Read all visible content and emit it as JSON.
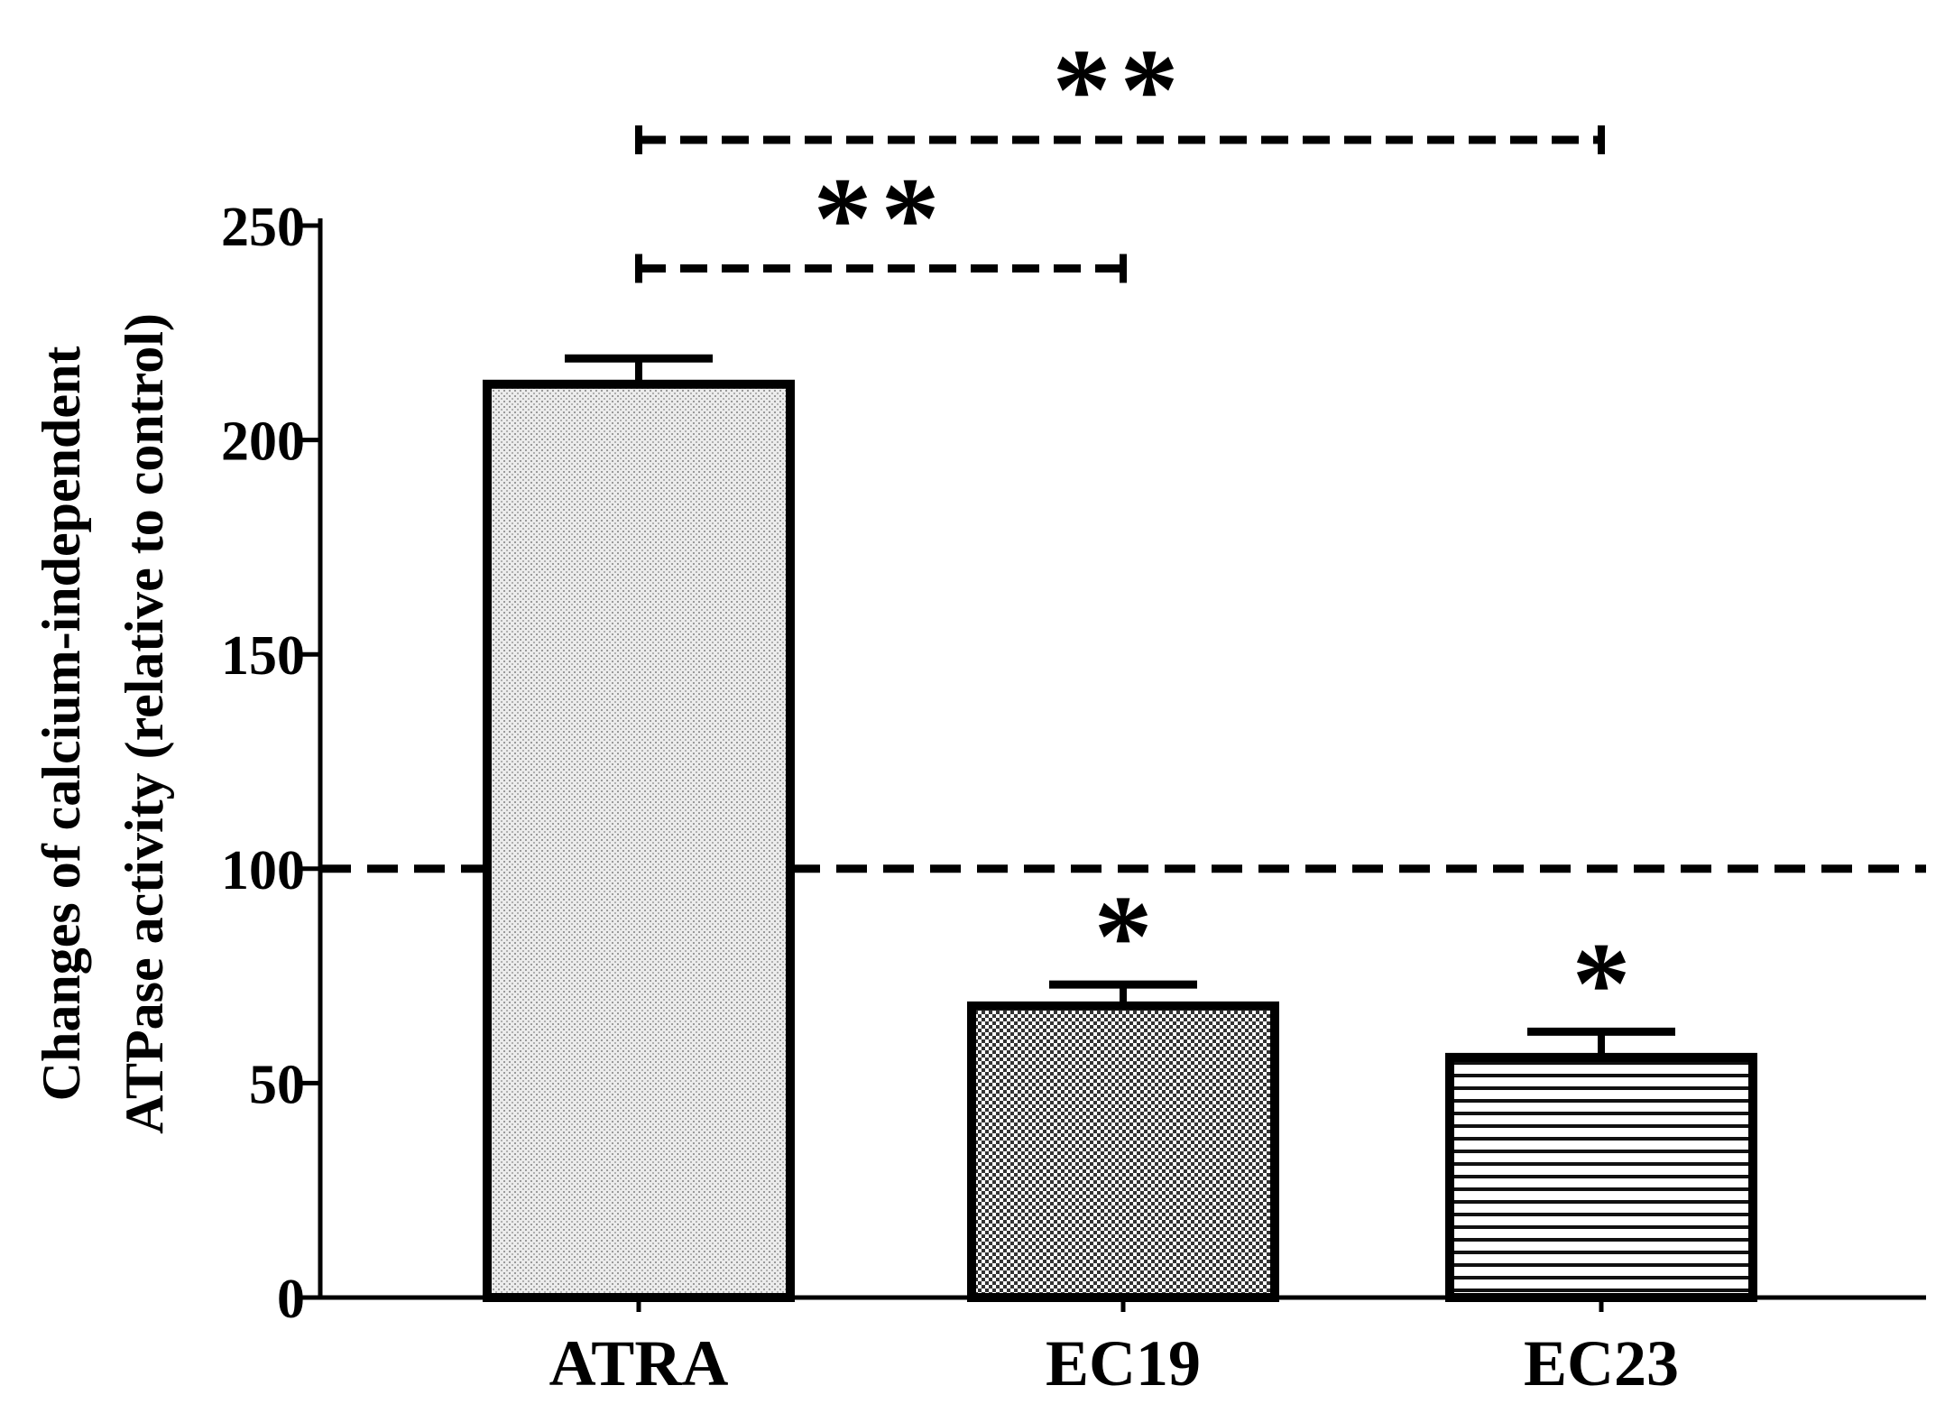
{
  "chart_data": {
    "type": "bar",
    "categories": [
      "ATRA",
      "EC19",
      "EC23"
    ],
    "values": [
      213,
      68,
      56
    ],
    "errors": [
      6,
      5,
      6
    ],
    "fill_patterns": [
      "fine-dots",
      "checker",
      "horizontal-lines"
    ],
    "ylabel_line1": "Changes of calcium-independent",
    "ylabel_line2": "ATPase activity (relative to control)",
    "xlabel": "",
    "ylim": [
      0,
      250
    ],
    "yticks": [
      0,
      50,
      100,
      150,
      200,
      250
    ],
    "reference_line": 100,
    "bar_significance": [
      "",
      "*",
      "*"
    ],
    "comparisons": [
      {
        "from": "ATRA",
        "to": "EC19",
        "label": "**",
        "level": 240
      },
      {
        "from": "ATRA",
        "to": "EC23",
        "label": "**",
        "level": 270
      }
    ],
    "colors": {
      "bar_stroke": "#000000",
      "atra_fill": "#e6e6e6",
      "ec19_fill": "#4a4a4a",
      "ec23_line": "#111111"
    }
  }
}
